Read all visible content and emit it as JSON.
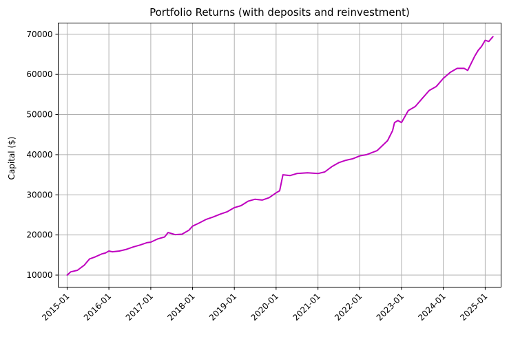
{
  "chart_data": {
    "type": "line",
    "title": "Portfolio Returns (with deposits and reinvestment)",
    "xlabel": "",
    "ylabel": "Capital ($)",
    "x_tick_labels": [
      "2015-01",
      "2016-01",
      "2017-01",
      "2018-01",
      "2019-01",
      "2020-01",
      "2021-01",
      "2022-01",
      "2023-01",
      "2024-01",
      "2025-01"
    ],
    "y_tick_labels": [
      "10000",
      "20000",
      "30000",
      "40000",
      "50000",
      "60000",
      "70000"
    ],
    "xlim": [
      "2014-10-15",
      "2025-05-20"
    ],
    "ylim": [
      7000,
      72800
    ],
    "grid": true,
    "legend": "none",
    "series": [
      {
        "color": "#bf00bf",
        "x": [
          "2015-01-01",
          "2015-02-01",
          "2015-04-01",
          "2015-06-01",
          "2015-07-15",
          "2015-09-01",
          "2015-11-01",
          "2015-12-01",
          "2016-01-01",
          "2016-02-01",
          "2016-04-01",
          "2016-06-01",
          "2016-08-01",
          "2016-10-01",
          "2016-12-01",
          "2017-01-01",
          "2017-03-01",
          "2017-05-01",
          "2017-06-01",
          "2017-08-01",
          "2017-10-01",
          "2017-12-01",
          "2018-01-01",
          "2018-03-01",
          "2018-05-01",
          "2018-07-01",
          "2018-09-01",
          "2018-11-01",
          "2019-01-01",
          "2019-03-01",
          "2019-05-01",
          "2019-07-01",
          "2019-09-01",
          "2019-11-01",
          "2020-01-01",
          "2020-02-01",
          "2020-03-01",
          "2020-05-01",
          "2020-07-01",
          "2020-10-01",
          "2021-01-01",
          "2021-03-01",
          "2021-05-01",
          "2021-07-01",
          "2021-09-01",
          "2021-11-01",
          "2022-01-01",
          "2022-03-01",
          "2022-06-01",
          "2022-09-01",
          "2022-10-15",
          "2022-11-01",
          "2022-12-01",
          "2023-01-01",
          "2023-03-01",
          "2023-05-01",
          "2023-07-01",
          "2023-09-01",
          "2023-11-01",
          "2024-01-01",
          "2024-03-01",
          "2024-05-01",
          "2024-07-01",
          "2024-08-01",
          "2024-10-01",
          "2024-11-01",
          "2024-12-01",
          "2025-01-01",
          "2025-02-01",
          "2025-03-10"
        ],
        "y": [
          10000,
          10800,
          11200,
          12500,
          14000,
          14500,
          15300,
          15500,
          16000,
          15800,
          16000,
          16400,
          17000,
          17500,
          18100,
          18200,
          19000,
          19500,
          20600,
          20100,
          20200,
          21200,
          22200,
          23000,
          23900,
          24500,
          25200,
          25800,
          26800,
          27300,
          28400,
          28900,
          28700,
          29300,
          30500,
          31000,
          35000,
          34800,
          35300,
          35500,
          35300,
          35700,
          37000,
          38000,
          38600,
          39000,
          39700,
          40000,
          41000,
          43500,
          46000,
          48000,
          48500,
          48000,
          51000,
          52000,
          54000,
          56000,
          57000,
          59000,
          60500,
          61500,
          61500,
          61000,
          64500,
          66000,
          67000,
          68500,
          68200,
          69400
        ]
      }
    ]
  }
}
